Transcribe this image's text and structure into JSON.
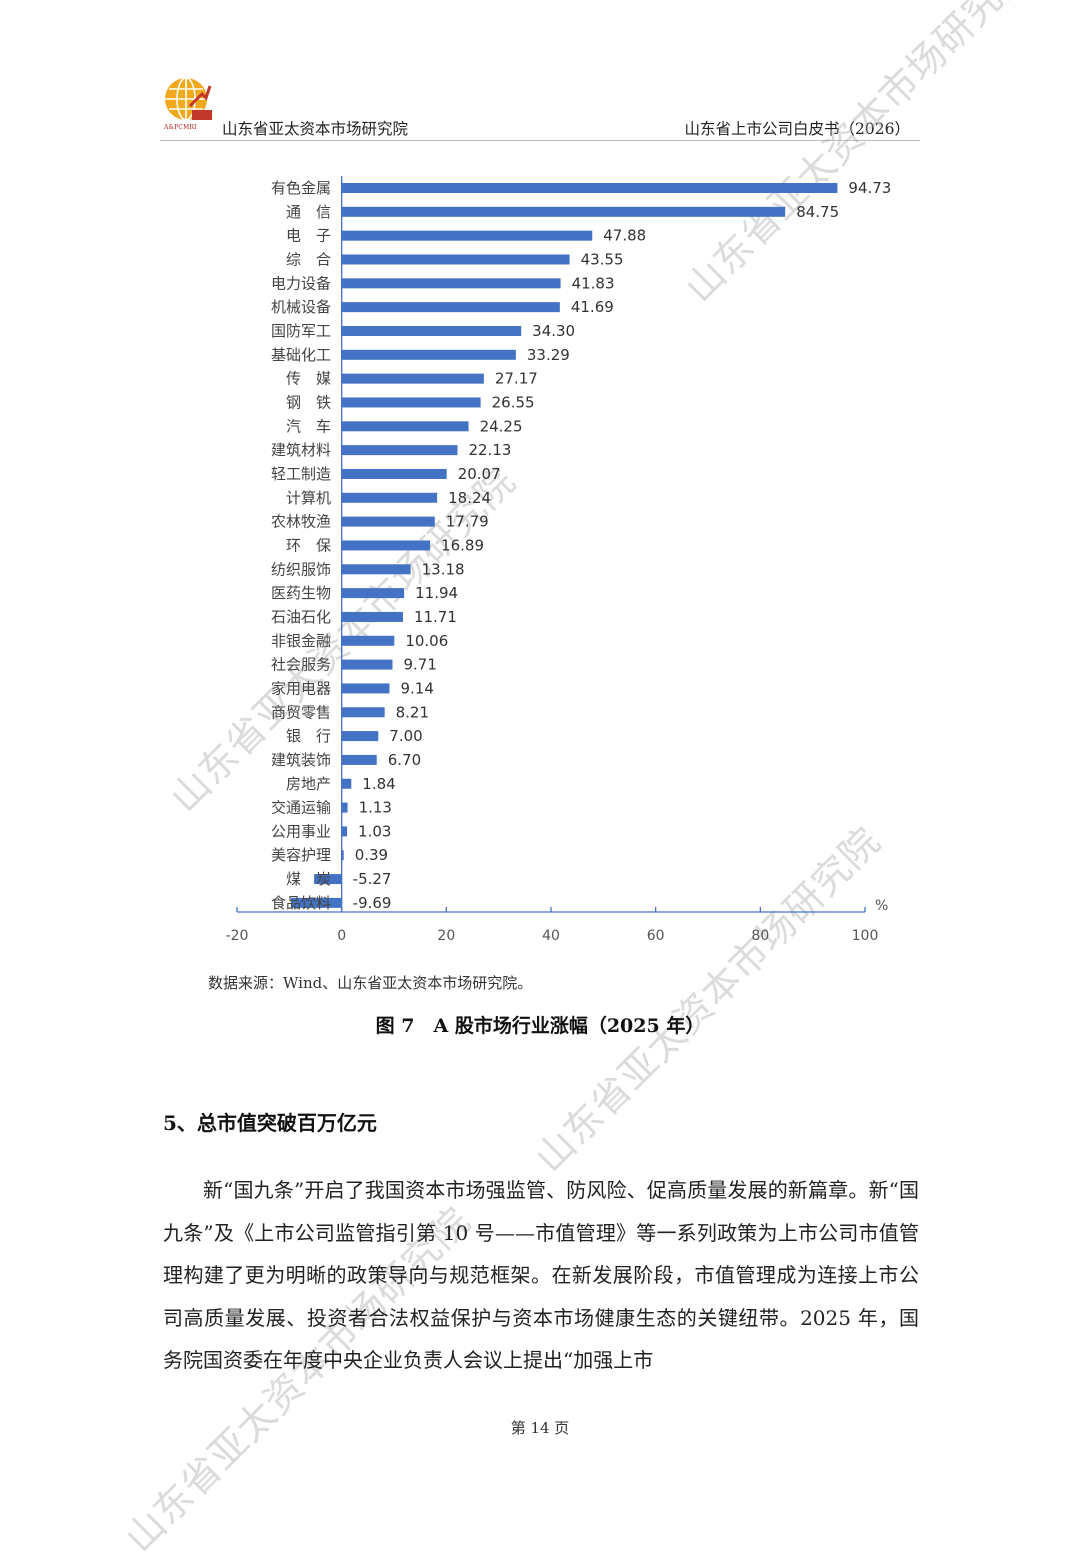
{
  "header": {
    "logo_text": "A&PCMRI",
    "org_name": "山东省亚太资本市场研究院",
    "doc_title": "山东省上市公司白皮书（2026）"
  },
  "watermark_text": "山东省亚太资本市场研究院",
  "colors": {
    "bar": "#4472c4",
    "axis": "#4472c4",
    "logo_orange": "#f0a81c",
    "logo_red": "#c0392b"
  },
  "chart_data": {
    "type": "bar",
    "orientation": "horizontal",
    "categories": [
      "有色金属",
      "通　信",
      "电　子",
      "综　合",
      "电力设备",
      "机械设备",
      "国防军工",
      "基础化工",
      "传　媒",
      "钢　铁",
      "汽　车",
      "建筑材料",
      "轻工制造",
      "计算机",
      "农林牧渔",
      "环　保",
      "纺织服饰",
      "医药生物",
      "石油石化",
      "非银金融",
      "社会服务",
      "家用电器",
      "商贸零售",
      "银　行",
      "建筑装饰",
      "房地产",
      "交通运输",
      "公用事业",
      "美容护理",
      "煤　炭",
      "食品饮料"
    ],
    "values": [
      94.73,
      84.75,
      47.88,
      43.55,
      41.83,
      41.69,
      34.3,
      33.29,
      27.17,
      26.55,
      24.25,
      22.13,
      20.07,
      18.24,
      17.79,
      16.89,
      13.18,
      11.94,
      11.71,
      10.06,
      9.71,
      9.14,
      8.21,
      7.0,
      6.7,
      1.84,
      1.13,
      1.03,
      0.39,
      -5.27,
      -9.69
    ],
    "value_labels": [
      "94.73",
      "84.75",
      "47.88",
      "43.55",
      "41.83",
      "41.69",
      "34.30",
      "33.29",
      "27.17",
      "26.55",
      "24.25",
      "22.13",
      "20.07",
      "18.24",
      "17.79",
      "16.89",
      "13.18",
      "11.94",
      "11.71",
      "10.06",
      "9.71",
      "9.14",
      "8.21",
      "7.00",
      "6.70",
      "1.84",
      "1.13",
      "1.03",
      "0.39",
      "-5.27",
      "-9.69"
    ],
    "xlim": [
      -20,
      100
    ],
    "xticks": [
      -20,
      0,
      20,
      40,
      60,
      80,
      100
    ],
    "xunit": "%"
  },
  "source": "数据来源：Wind、山东省亚太资本市场研究院。",
  "caption": "图 7　A 股市场行业涨幅（2025 年）",
  "section_title": "5、总市值突破百万亿元",
  "paragraph": "新“国九条”开启了我国资本市场强监管、防风险、促高质量发展的新篇章。新“国九条”及《上市公司监管指引第 10 号——市值管理》等一系列政策为上市公司市值管理构建了更为明晰的政策导向与规范框架。在新发展阶段，市值管理成为连接上市公司高质量发展、投资者合法权益保护与资本市场健康生态的关键纽带。2025 年，国务院国资委在年度中央企业负责人会议上提出“加强上市",
  "page_number": "第 14 页"
}
